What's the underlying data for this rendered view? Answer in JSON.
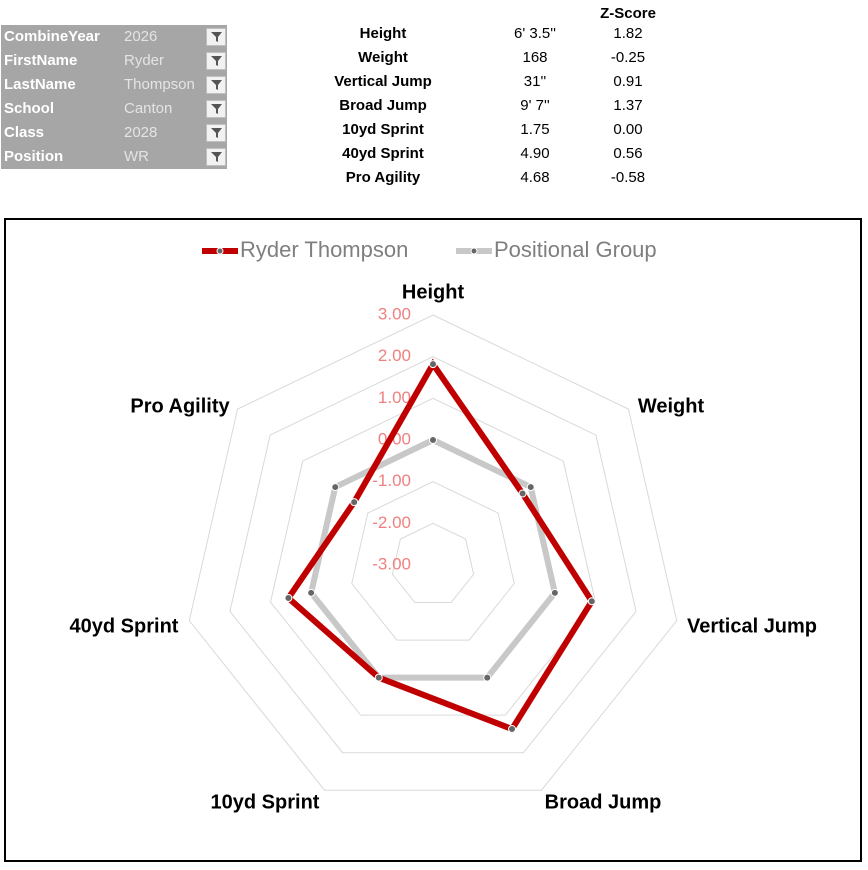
{
  "filters": [
    {
      "label": "CombineYear",
      "value": "2026"
    },
    {
      "label": "FirstName",
      "value": "Ryder"
    },
    {
      "label": "LastName",
      "value": "Thompson"
    },
    {
      "label": "School",
      "value": "Canton"
    },
    {
      "label": "Class",
      "value": "2028"
    },
    {
      "label": "Position",
      "value": "WR"
    }
  ],
  "table": {
    "header": "Z-Score",
    "rows": [
      [
        "Height",
        "6' 3.5''",
        "1.82"
      ],
      [
        "Weight",
        "168",
        "-0.25"
      ],
      [
        "Vertical Jump",
        "31''",
        "0.91"
      ],
      [
        "Broad Jump",
        "9' 7''",
        "1.37"
      ],
      [
        "10yd Sprint",
        "1.75",
        "0.00"
      ],
      [
        "40yd Sprint",
        "4.90",
        "0.56"
      ],
      [
        "Pro Agility",
        "4.68",
        "-0.58"
      ]
    ]
  },
  "chart_data": {
    "type": "radar",
    "categories": [
      "Height",
      "Weight",
      "Vertical Jump",
      "Broad Jump",
      "10yd Sprint",
      "40yd Sprint",
      "Pro Agility"
    ],
    "series": [
      {
        "name": "Ryder Thompson",
        "color": "#c00000",
        "values": [
          1.82,
          -0.25,
          0.91,
          1.37,
          0.0,
          0.56,
          -0.58
        ]
      },
      {
        "name": "Positional Group",
        "color": "#c8c8c8",
        "values": [
          0,
          0,
          0,
          0,
          0,
          0,
          0
        ]
      }
    ],
    "ylim": [
      -3,
      3
    ],
    "yticks": [
      {
        "value": 3,
        "label": "3.00"
      },
      {
        "value": 2,
        "label": "2.00"
      },
      {
        "value": 1,
        "label": "1.00"
      },
      {
        "value": 0,
        "label": "0.00"
      },
      {
        "value": -1,
        "label": "-1.00"
      },
      {
        "value": -2,
        "label": "-2.00"
      },
      {
        "value": -3,
        "label": "-3.00"
      }
    ],
    "grid": true
  }
}
